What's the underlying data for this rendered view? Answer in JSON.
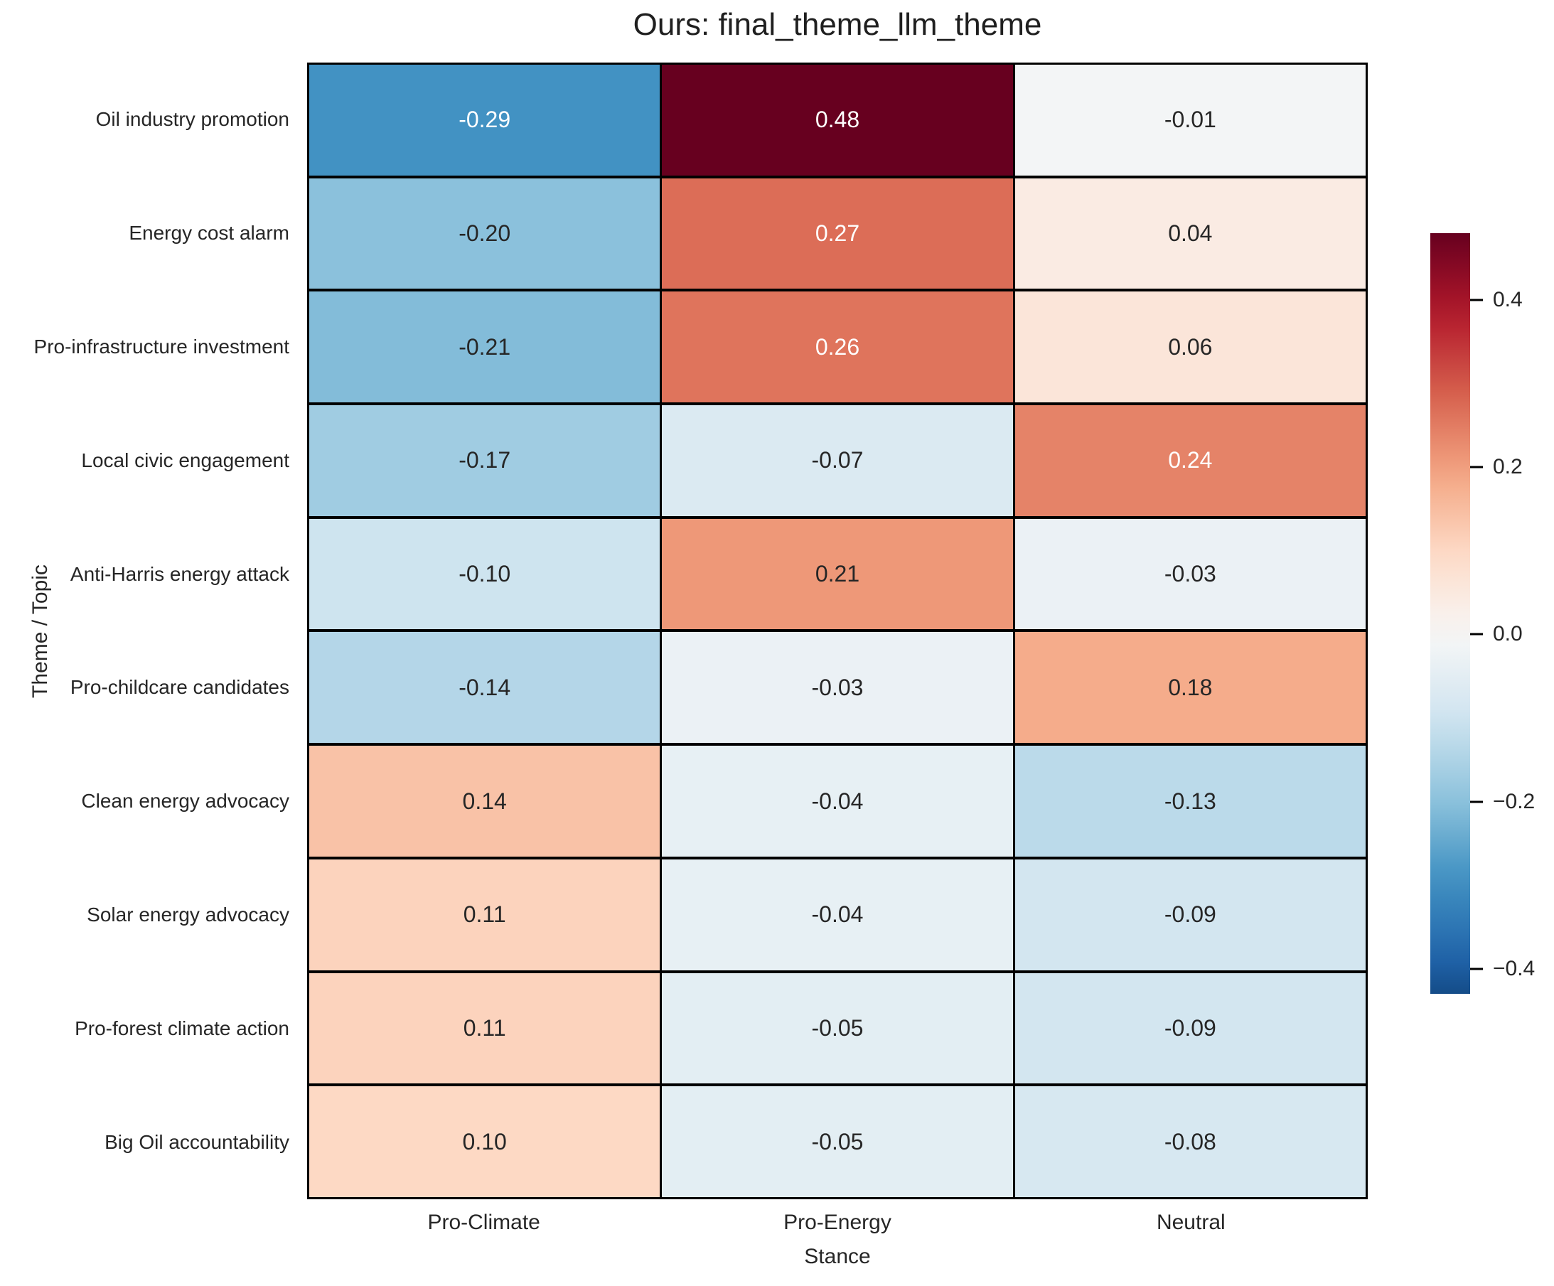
{
  "figure": {
    "title": "Ours: final_theme_llm_theme",
    "xlabel": "Stance",
    "ylabel": "Theme / Topic"
  },
  "chart_data": {
    "type": "heatmap",
    "title": "Ours: final_theme_llm_theme",
    "xlabel": "Stance",
    "ylabel": "Theme / Topic",
    "columns": [
      "Pro-Climate",
      "Pro-Energy",
      "Neutral"
    ],
    "rows": [
      "Oil industry promotion",
      "Energy cost alarm",
      "Pro-infrastructure investment",
      "Local civic engagement",
      "Anti-Harris energy attack",
      "Pro-childcare candidates",
      "Clean energy advocacy",
      "Solar energy advocacy",
      "Pro-forest climate action",
      "Big Oil accountability"
    ],
    "values": [
      [
        -0.29,
        0.48,
        -0.01
      ],
      [
        -0.2,
        0.27,
        0.04
      ],
      [
        -0.21,
        0.26,
        0.06
      ],
      [
        -0.17,
        -0.07,
        0.24
      ],
      [
        -0.1,
        0.21,
        -0.03
      ],
      [
        -0.14,
        -0.03,
        0.18
      ],
      [
        0.14,
        -0.04,
        -0.13
      ],
      [
        0.11,
        -0.04,
        -0.09
      ],
      [
        0.11,
        -0.05,
        -0.09
      ],
      [
        0.1,
        -0.05,
        -0.08
      ]
    ],
    "annotation_decimals": 2,
    "cell_text_colors": {
      "light": "#ffffff",
      "dark": "#262626"
    },
    "grid_line_color": "#000000",
    "colormap": {
      "name": "RdBu_r",
      "anchors": [
        "#053061",
        "#2166ac",
        "#4393c3",
        "#92c5de",
        "#d1e5f0",
        "#f7f7f7",
        "#fddbc7",
        "#f4a582",
        "#d6604d",
        "#b2182b",
        "#67001f"
      ],
      "norm_vmin": -0.48,
      "norm_vmax": 0.48,
      "center": 0
    },
    "colorbar": {
      "display_min": -0.43,
      "display_max": 0.48,
      "ticks": [
        0.4,
        0.2,
        0.0,
        -0.2,
        -0.4
      ],
      "tick_labels": [
        "0.4",
        "0.2",
        "0.0",
        "−0.2",
        "−0.4"
      ],
      "position": "right"
    },
    "legend": null,
    "grid": false
  }
}
